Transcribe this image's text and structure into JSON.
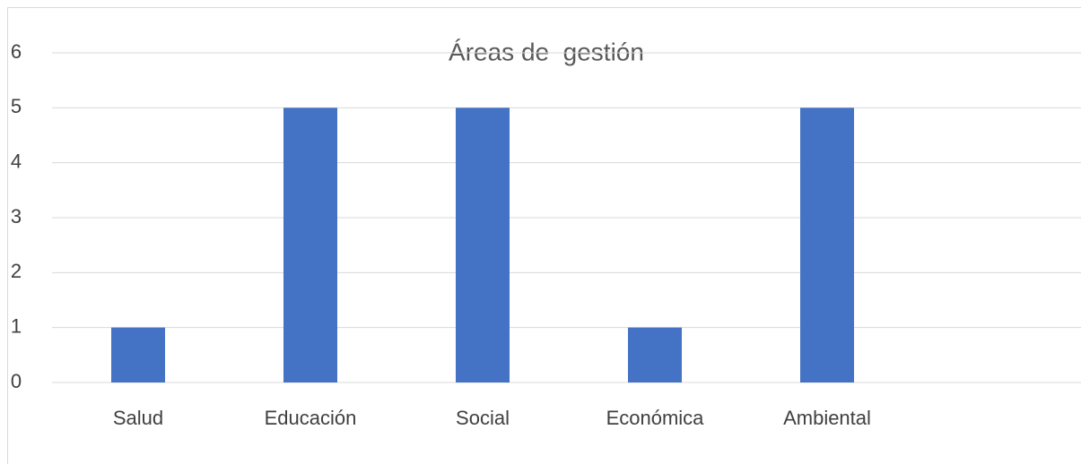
{
  "chart_data": {
    "type": "bar",
    "title": "Áreas de  gestión",
    "categories": [
      "Salud",
      "Educación",
      "Social",
      "Económica",
      "Ambiental"
    ],
    "values": [
      1,
      5,
      5,
      1,
      5
    ],
    "color": "#4472c4",
    "ylim": [
      0,
      6
    ],
    "yticks": [
      0,
      1,
      2,
      3,
      4,
      5,
      6
    ],
    "grid": true
  }
}
